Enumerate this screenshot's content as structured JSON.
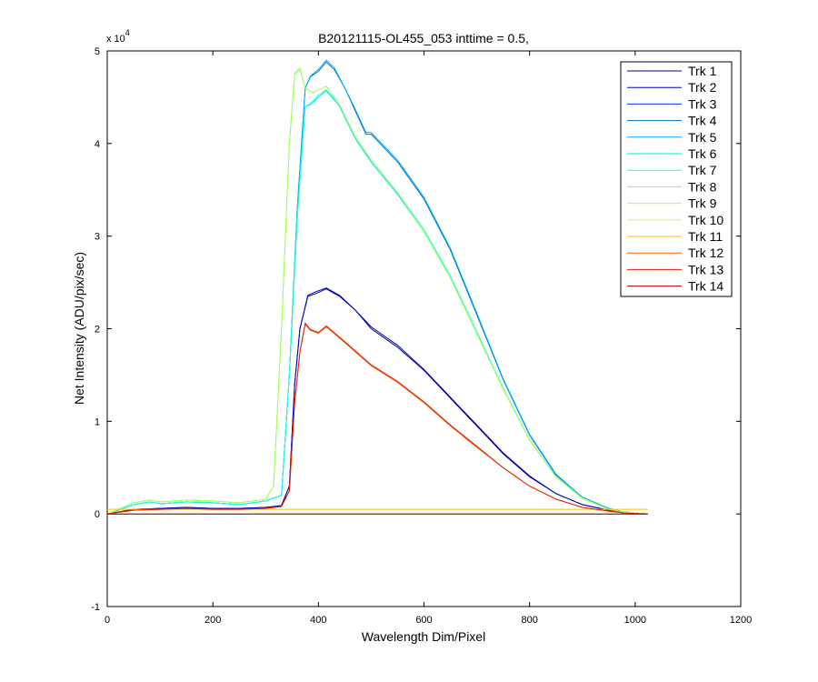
{
  "chart_data": {
    "type": "line",
    "title": "B20121115-OL455_053 inttime = 0.5,",
    "xlabel": "Wavelength Dim/Pixel",
    "ylabel": "Net Intensity (ADU/pix/sec)",
    "y_multiplier": "x 10",
    "y_multiplier_exponent": "4",
    "xlim": [
      0,
      1200
    ],
    "ylim": [
      -1,
      5
    ],
    "xticks": [
      0,
      200,
      400,
      600,
      800,
      1000,
      1200
    ],
    "yticks": [
      -1,
      0,
      1,
      2,
      3,
      4,
      5
    ],
    "grid": false,
    "legend_position": "top-right",
    "series": [
      {
        "name": "Trk 1",
        "color": "#00008f",
        "values": [
          [
            0,
            0
          ],
          [
            50,
            0.05
          ],
          [
            100,
            0.06
          ],
          [
            150,
            0.07
          ],
          [
            200,
            0.06
          ],
          [
            250,
            0.06
          ],
          [
            300,
            0.07
          ],
          [
            330,
            0.09
          ],
          [
            345,
            0.3
          ],
          [
            355,
            1.4
          ],
          [
            365,
            2.0
          ],
          [
            380,
            2.35
          ],
          [
            395,
            2.38
          ],
          [
            415,
            2.43
          ],
          [
            440,
            2.35
          ],
          [
            470,
            2.2
          ],
          [
            500,
            2.0
          ],
          [
            550,
            1.8
          ],
          [
            600,
            1.55
          ],
          [
            650,
            1.25
          ],
          [
            700,
            0.95
          ],
          [
            750,
            0.65
          ],
          [
            800,
            0.4
          ],
          [
            850,
            0.22
          ],
          [
            900,
            0.1
          ],
          [
            950,
            0.04
          ],
          [
            980,
            0.02
          ],
          [
            1024,
            0.0
          ]
        ]
      },
      {
        "name": "Trk 2",
        "color": "#0000c8",
        "values": [
          [
            0,
            0
          ],
          [
            50,
            0.05
          ],
          [
            100,
            0.06
          ],
          [
            150,
            0.07
          ],
          [
            200,
            0.06
          ],
          [
            250,
            0.06
          ],
          [
            300,
            0.07
          ],
          [
            330,
            0.09
          ],
          [
            345,
            0.3
          ],
          [
            355,
            1.4
          ],
          [
            365,
            2.0
          ],
          [
            380,
            2.36
          ],
          [
            395,
            2.4
          ],
          [
            415,
            2.44
          ],
          [
            440,
            2.36
          ],
          [
            470,
            2.2
          ],
          [
            500,
            2.02
          ],
          [
            550,
            1.82
          ],
          [
            600,
            1.56
          ],
          [
            650,
            1.26
          ],
          [
            700,
            0.96
          ],
          [
            750,
            0.66
          ],
          [
            800,
            0.41
          ],
          [
            850,
            0.22
          ],
          [
            900,
            0.1
          ],
          [
            950,
            0.04
          ],
          [
            980,
            0.02
          ],
          [
            1024,
            0.0
          ]
        ]
      },
      {
        "name": "Trk 3",
        "color": "#0030ff",
        "values": [
          [
            0,
            0
          ],
          [
            1024,
            0.0
          ]
        ]
      },
      {
        "name": "Trk 4",
        "color": "#0070c0",
        "values": [
          [
            0,
            0
          ],
          [
            50,
            0.1
          ],
          [
            80,
            0.13
          ],
          [
            100,
            0.11
          ],
          [
            150,
            0.13
          ],
          [
            200,
            0.12
          ],
          [
            250,
            0.1
          ],
          [
            300,
            0.14
          ],
          [
            330,
            0.2
          ],
          [
            345,
            1.5
          ],
          [
            360,
            3.3
          ],
          [
            375,
            4.6
          ],
          [
            385,
            4.72
          ],
          [
            400,
            4.78
          ],
          [
            415,
            4.88
          ],
          [
            430,
            4.8
          ],
          [
            450,
            4.6
          ],
          [
            470,
            4.35
          ],
          [
            490,
            4.1
          ],
          [
            500,
            4.1
          ],
          [
            550,
            3.8
          ],
          [
            600,
            3.4
          ],
          [
            650,
            2.85
          ],
          [
            700,
            2.15
          ],
          [
            750,
            1.45
          ],
          [
            800,
            0.85
          ],
          [
            850,
            0.42
          ],
          [
            900,
            0.18
          ],
          [
            950,
            0.06
          ],
          [
            980,
            0.02
          ],
          [
            1024,
            0.0
          ]
        ]
      },
      {
        "name": "Trk 5",
        "color": "#00b0ff",
        "values": [
          [
            0,
            0
          ],
          [
            50,
            0.1
          ],
          [
            80,
            0.13
          ],
          [
            100,
            0.11
          ],
          [
            150,
            0.13
          ],
          [
            200,
            0.12
          ],
          [
            250,
            0.1
          ],
          [
            300,
            0.14
          ],
          [
            330,
            0.2
          ],
          [
            345,
            1.5
          ],
          [
            360,
            3.3
          ],
          [
            375,
            4.6
          ],
          [
            385,
            4.73
          ],
          [
            400,
            4.8
          ],
          [
            415,
            4.9
          ],
          [
            430,
            4.82
          ],
          [
            450,
            4.6
          ],
          [
            470,
            4.37
          ],
          [
            490,
            4.12
          ],
          [
            500,
            4.12
          ],
          [
            550,
            3.82
          ],
          [
            600,
            3.42
          ],
          [
            650,
            2.87
          ],
          [
            700,
            2.17
          ],
          [
            750,
            1.46
          ],
          [
            800,
            0.86
          ],
          [
            850,
            0.43
          ],
          [
            900,
            0.18
          ],
          [
            950,
            0.06
          ],
          [
            980,
            0.02
          ],
          [
            1024,
            0.0
          ]
        ]
      },
      {
        "name": "Trk 6",
        "color": "#00e0ff",
        "values": [
          [
            0,
            0
          ],
          [
            50,
            0.1
          ],
          [
            80,
            0.13
          ],
          [
            100,
            0.11
          ],
          [
            150,
            0.13
          ],
          [
            200,
            0.12
          ],
          [
            250,
            0.1
          ],
          [
            300,
            0.14
          ],
          [
            330,
            0.2
          ],
          [
            345,
            1.5
          ],
          [
            360,
            3.2
          ],
          [
            375,
            4.4
          ],
          [
            385,
            4.42
          ],
          [
            400,
            4.5
          ],
          [
            415,
            4.57
          ],
          [
            440,
            4.4
          ],
          [
            470,
            4.05
          ],
          [
            500,
            3.8
          ],
          [
            550,
            3.45
          ],
          [
            600,
            3.05
          ],
          [
            650,
            2.55
          ],
          [
            700,
            1.95
          ],
          [
            750,
            1.35
          ],
          [
            800,
            0.8
          ],
          [
            850,
            0.4
          ],
          [
            900,
            0.17
          ],
          [
            950,
            0.05
          ],
          [
            980,
            0.02
          ],
          [
            1024,
            0.0
          ]
        ]
      },
      {
        "name": "Trk 7",
        "color": "#20ffe0",
        "values": [
          [
            0,
            0
          ],
          [
            50,
            0.1
          ],
          [
            80,
            0.13
          ],
          [
            100,
            0.11
          ],
          [
            150,
            0.13
          ],
          [
            200,
            0.12
          ],
          [
            250,
            0.1
          ],
          [
            300,
            0.14
          ],
          [
            330,
            0.2
          ],
          [
            345,
            1.5
          ],
          [
            360,
            3.2
          ],
          [
            375,
            4.4
          ],
          [
            385,
            4.43
          ],
          [
            400,
            4.52
          ],
          [
            415,
            4.58
          ],
          [
            440,
            4.42
          ],
          [
            470,
            4.07
          ],
          [
            500,
            3.82
          ],
          [
            550,
            3.47
          ],
          [
            600,
            3.07
          ],
          [
            650,
            2.57
          ],
          [
            700,
            1.97
          ],
          [
            750,
            1.36
          ],
          [
            800,
            0.8
          ],
          [
            850,
            0.4
          ],
          [
            900,
            0.17
          ],
          [
            950,
            0.05
          ],
          [
            980,
            0.02
          ],
          [
            1024,
            0.0
          ]
        ]
      },
      {
        "name": "Trk 8",
        "color": "#70ff90",
        "values": [
          [
            0,
            0
          ],
          [
            50,
            0.12
          ],
          [
            80,
            0.15
          ],
          [
            100,
            0.13
          ],
          [
            150,
            0.15
          ],
          [
            200,
            0.14
          ],
          [
            250,
            0.12
          ],
          [
            300,
            0.16
          ],
          [
            315,
            0.3
          ],
          [
            330,
            2.0
          ],
          [
            345,
            4.0
          ],
          [
            355,
            4.75
          ],
          [
            365,
            4.8
          ],
          [
            375,
            4.6
          ],
          [
            390,
            4.55
          ],
          [
            415,
            4.62
          ],
          [
            440,
            4.42
          ],
          [
            470,
            4.07
          ],
          [
            500,
            3.82
          ],
          [
            550,
            3.47
          ],
          [
            600,
            3.05
          ],
          [
            650,
            2.55
          ],
          [
            700,
            1.95
          ],
          [
            750,
            1.35
          ],
          [
            800,
            0.8
          ],
          [
            850,
            0.4
          ],
          [
            900,
            0.17
          ],
          [
            950,
            0.05
          ],
          [
            980,
            0.02
          ],
          [
            1024,
            0.0
          ]
        ]
      },
      {
        "name": "Trk 9",
        "color": "#a8ff50",
        "values": [
          [
            0,
            0
          ],
          [
            50,
            0.12
          ],
          [
            80,
            0.15
          ],
          [
            100,
            0.13
          ],
          [
            150,
            0.15
          ],
          [
            200,
            0.14
          ],
          [
            250,
            0.12
          ],
          [
            300,
            0.16
          ],
          [
            315,
            0.3
          ],
          [
            330,
            2.0
          ],
          [
            345,
            4.0
          ],
          [
            355,
            4.76
          ],
          [
            365,
            4.82
          ],
          [
            375,
            4.6
          ],
          [
            390,
            4.55
          ],
          [
            415,
            4.62
          ],
          [
            440,
            4.42
          ],
          [
            470,
            4.07
          ],
          [
            500,
            3.82
          ],
          [
            550,
            3.47
          ],
          [
            600,
            3.05
          ],
          [
            650,
            2.55
          ],
          [
            700,
            1.95
          ],
          [
            750,
            1.35
          ],
          [
            800,
            0.8
          ],
          [
            850,
            0.4
          ],
          [
            900,
            0.17
          ],
          [
            950,
            0.05
          ],
          [
            980,
            0.02
          ],
          [
            1024,
            0.0
          ]
        ]
      },
      {
        "name": "Trk 10",
        "color": "#d8ff20",
        "values": [
          [
            0,
            0
          ],
          [
            1024,
            0.0
          ]
        ]
      },
      {
        "name": "Trk 11",
        "color": "#ffc000",
        "values": [
          [
            0,
            0.05
          ],
          [
            1024,
            0.05
          ]
        ]
      },
      {
        "name": "Trk 12",
        "color": "#ff6000",
        "values": [
          [
            0,
            0
          ],
          [
            50,
            0.04
          ],
          [
            100,
            0.05
          ],
          [
            150,
            0.06
          ],
          [
            200,
            0.05
          ],
          [
            250,
            0.05
          ],
          [
            300,
            0.06
          ],
          [
            330,
            0.08
          ],
          [
            345,
            0.25
          ],
          [
            355,
            1.2
          ],
          [
            365,
            1.75
          ],
          [
            375,
            2.05
          ],
          [
            385,
            1.98
          ],
          [
            400,
            1.95
          ],
          [
            415,
            2.02
          ],
          [
            440,
            1.9
          ],
          [
            470,
            1.75
          ],
          [
            500,
            1.6
          ],
          [
            550,
            1.42
          ],
          [
            600,
            1.2
          ],
          [
            650,
            0.95
          ],
          [
            700,
            0.72
          ],
          [
            750,
            0.5
          ],
          [
            800,
            0.3
          ],
          [
            850,
            0.16
          ],
          [
            900,
            0.07
          ],
          [
            950,
            0.03
          ],
          [
            980,
            0.01
          ],
          [
            1024,
            0.0
          ]
        ]
      },
      {
        "name": "Trk 13",
        "color": "#e02000",
        "values": [
          [
            0,
            0
          ],
          [
            50,
            0.04
          ],
          [
            100,
            0.05
          ],
          [
            150,
            0.06
          ],
          [
            200,
            0.05
          ],
          [
            250,
            0.05
          ],
          [
            300,
            0.06
          ],
          [
            330,
            0.08
          ],
          [
            345,
            0.25
          ],
          [
            355,
            1.2
          ],
          [
            365,
            1.75
          ],
          [
            375,
            2.06
          ],
          [
            385,
            1.99
          ],
          [
            400,
            1.96
          ],
          [
            415,
            2.03
          ],
          [
            440,
            1.91
          ],
          [
            470,
            1.76
          ],
          [
            500,
            1.61
          ],
          [
            550,
            1.43
          ],
          [
            600,
            1.21
          ],
          [
            650,
            0.96
          ],
          [
            700,
            0.73
          ],
          [
            750,
            0.5
          ],
          [
            800,
            0.3
          ],
          [
            850,
            0.16
          ],
          [
            900,
            0.07
          ],
          [
            950,
            0.03
          ],
          [
            980,
            0.01
          ],
          [
            1024,
            0.0
          ]
        ]
      },
      {
        "name": "Trk 14",
        "color": "#a00000",
        "values": [
          [
            0,
            0
          ],
          [
            1024,
            0.0
          ]
        ]
      }
    ]
  }
}
